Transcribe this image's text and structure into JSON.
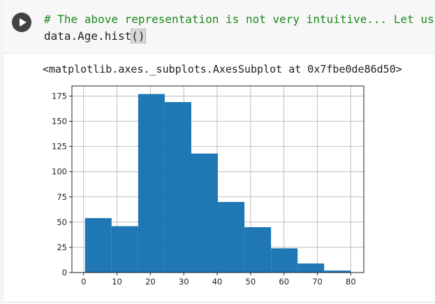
{
  "cell": {
    "run_icon": "play-icon",
    "code_lines": [
      "# The above representation is not very intuitive... Let us",
      "data.Age.hist"
    ],
    "code_parens": "()",
    "output_text": "<matplotlib.axes._subplots.AxesSubplot at 0x7fbe0de86d50>"
  },
  "chart_data": {
    "type": "bar",
    "bins": [
      [
        0.42,
        8.38
      ],
      [
        8.38,
        16.34
      ],
      [
        16.34,
        24.29
      ],
      [
        24.29,
        32.25
      ],
      [
        32.25,
        40.21
      ],
      [
        40.21,
        48.17
      ],
      [
        48.17,
        56.13
      ],
      [
        56.13,
        64.08
      ],
      [
        64.08,
        72.04
      ],
      [
        72.04,
        80.0
      ]
    ],
    "values": [
      54,
      46,
      177,
      169,
      118,
      70,
      45,
      24,
      9,
      2
    ],
    "xlim": [
      -3.5,
      83.9
    ],
    "ylim": [
      0,
      185
    ],
    "xticks": [
      0,
      10,
      20,
      30,
      40,
      50,
      60,
      70,
      80
    ],
    "yticks": [
      0,
      25,
      50,
      75,
      100,
      125,
      150,
      175
    ],
    "grid": true,
    "bar_color": "#1f77b4",
    "title": "",
    "xlabel": "",
    "ylabel": ""
  }
}
